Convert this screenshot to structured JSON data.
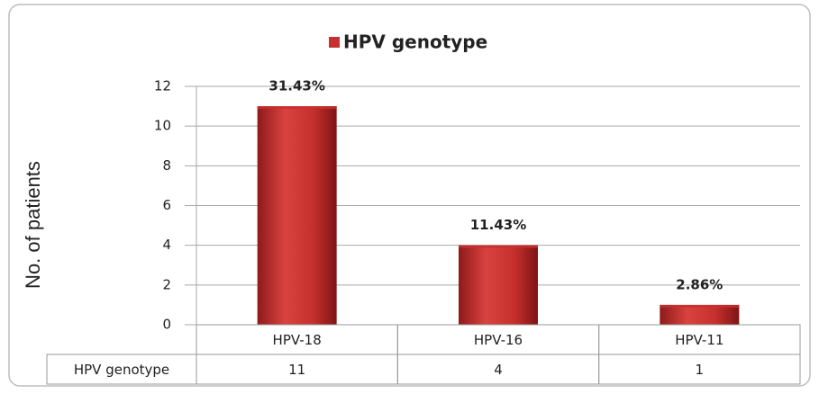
{
  "chart_data": {
    "type": "bar",
    "legend": "top",
    "y_label": "No. of patients",
    "categories": [
      "HPV-18",
      "HPV-16",
      "HPV-11"
    ],
    "series": [
      {
        "name": "HPV genotype",
        "color": "#c8302e",
        "values": [
          11,
          4,
          1
        ],
        "value_labels": [
          "31.43%",
          "11.43%",
          "2.86%"
        ]
      }
    ],
    "ylim": [
      0,
      12
    ],
    "yticks": [
      0,
      2,
      4,
      6,
      8,
      10,
      12
    ],
    "grid": true,
    "data_table": true
  }
}
